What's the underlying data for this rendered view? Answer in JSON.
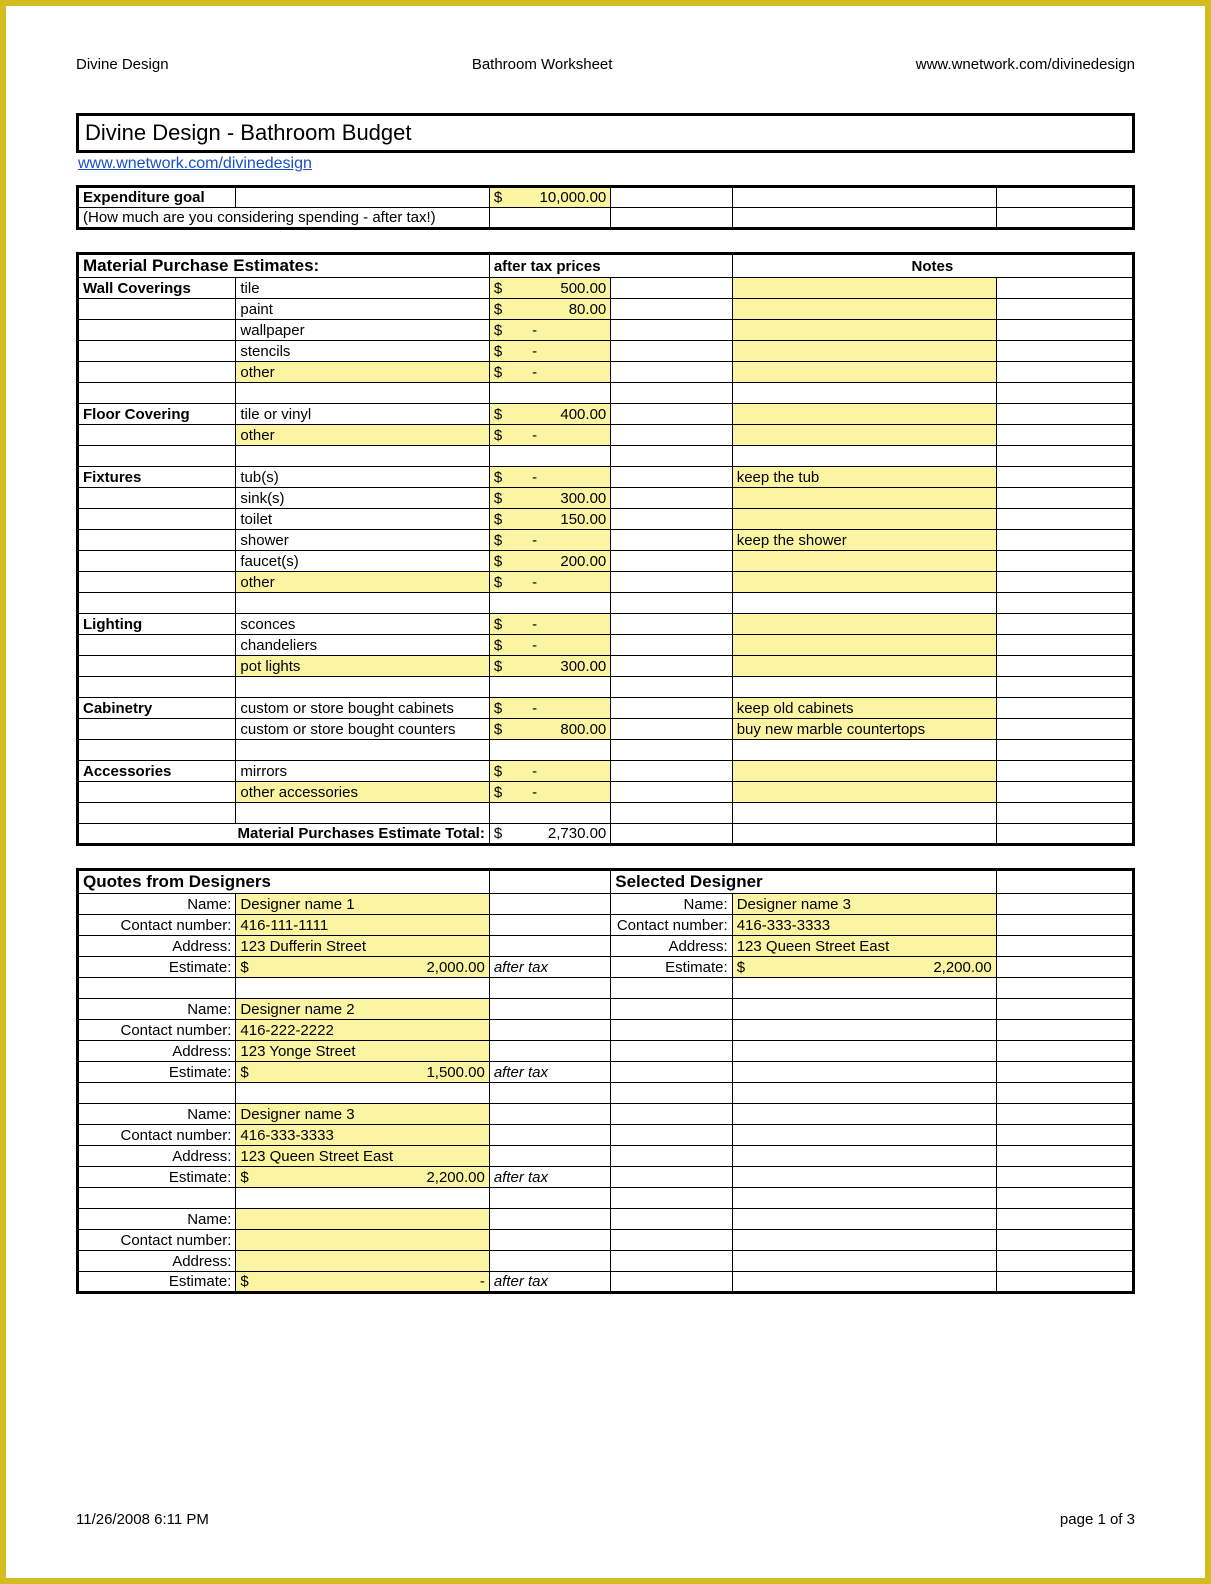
{
  "header": {
    "left": "Divine Design",
    "center": "Bathroom Worksheet",
    "right": "www.wnetwork.com/divinedesign"
  },
  "title": "Divine Design - Bathroom Budget",
  "link": "www.wnetwork.com/divinedesign",
  "goal": {
    "label": "Expenditure goal",
    "amount_sym": "$",
    "amount": "10,000.00",
    "note": "(How much are you considering spending - after tax!)"
  },
  "materials": {
    "heading": "Material Purchase Estimates:",
    "price_head": "after tax prices",
    "notes_head": "Notes",
    "total_label": "Material Purchases Estimate Total:",
    "total_sym": "$",
    "total_val": "2,730.00",
    "groups": [
      {
        "category": "Wall Coverings",
        "rows": [
          {
            "item": "tile",
            "sym": "$",
            "val": "500.00",
            "note": "",
            "yellow": true
          },
          {
            "item": "paint",
            "sym": "$",
            "val": "80.00",
            "note": "",
            "yellow": true
          },
          {
            "item": "wallpaper",
            "sym": "$",
            "val": "-",
            "note": "",
            "yellow": true
          },
          {
            "item": "stencils",
            "sym": "$",
            "val": "-",
            "note": "",
            "yellow": true
          },
          {
            "item": "other",
            "sym": "$",
            "val": "-",
            "note": "",
            "yellow": true,
            "item_yellow": true
          }
        ]
      },
      {
        "category": "Floor Covering",
        "rows": [
          {
            "item": "tile or vinyl",
            "sym": "$",
            "val": "400.00",
            "note": "",
            "yellow": true
          },
          {
            "item": "other",
            "sym": "$",
            "val": "-",
            "note": "",
            "yellow": true,
            "item_yellow": true
          }
        ]
      },
      {
        "category": "Fixtures",
        "rows": [
          {
            "item": "tub(s)",
            "sym": "$",
            "val": "-",
            "note": "keep the tub",
            "yellow": true
          },
          {
            "item": "sink(s)",
            "sym": "$",
            "val": "300.00",
            "note": "",
            "yellow": true
          },
          {
            "item": "toilet",
            "sym": "$",
            "val": "150.00",
            "note": "",
            "yellow": true
          },
          {
            "item": "shower",
            "sym": "$",
            "val": "-",
            "note": "keep the shower",
            "yellow": true
          },
          {
            "item": "faucet(s)",
            "sym": "$",
            "val": "200.00",
            "note": "",
            "yellow": true
          },
          {
            "item": "other",
            "sym": "$",
            "val": "-",
            "note": "",
            "yellow": true,
            "item_yellow": true
          }
        ]
      },
      {
        "category": "Lighting",
        "rows": [
          {
            "item": "sconces",
            "sym": "$",
            "val": "-",
            "note": "",
            "yellow": true
          },
          {
            "item": "chandeliers",
            "sym": "$",
            "val": "-",
            "note": "",
            "yellow": true
          },
          {
            "item": "pot lights",
            "sym": "$",
            "val": "300.00",
            "note": "",
            "yellow": true,
            "item_yellow": true
          }
        ]
      },
      {
        "category": "Cabinetry",
        "rows": [
          {
            "item": "custom or store bought cabinets",
            "sym": "$",
            "val": "-",
            "note": "keep old cabinets",
            "yellow": true
          },
          {
            "item": "custom or store bought counters",
            "sym": "$",
            "val": "800.00",
            "note": "buy new marble countertops",
            "yellow": true
          }
        ]
      },
      {
        "category": "Accessories",
        "rows": [
          {
            "item": "mirrors",
            "sym": "$",
            "val": "-",
            "note": "",
            "yellow": true
          },
          {
            "item": "other accessories",
            "sym": "$",
            "val": "-",
            "note": "",
            "yellow": true,
            "item_yellow": true
          }
        ]
      }
    ]
  },
  "quotes": {
    "head_left": "Quotes from Designers",
    "head_right": "Selected Designer",
    "labels": {
      "name": "Name:",
      "contact": "Contact number:",
      "address": "Address:",
      "estimate": "Estimate:",
      "after_tax": "after tax"
    },
    "designers": [
      {
        "name": "Designer name 1",
        "contact": "416-111-1111",
        "address": "123 Dufferin Street",
        "est_sym": "$",
        "est_val": "2,000.00"
      },
      {
        "name": "Designer name 2",
        "contact": "416-222-2222",
        "address": "123 Yonge Street",
        "est_sym": "$",
        "est_val": "1,500.00"
      },
      {
        "name": "Designer name 3",
        "contact": "416-333-3333",
        "address": "123 Queen Street East",
        "est_sym": "$",
        "est_val": "2,200.00"
      },
      {
        "name": "",
        "contact": "",
        "address": "",
        "est_sym": "$",
        "est_val": "-"
      }
    ],
    "selected": {
      "name": "Designer name 3",
      "contact": "416-333-3333",
      "address": "123 Queen Street East",
      "est_sym": "$",
      "est_val": "2,200.00"
    }
  },
  "footer": {
    "left": "11/26/2008 6:11 PM",
    "right": "page 1 of 3"
  },
  "colors": {
    "yellow": "#fbf5a3",
    "frame": "#d4bc1f",
    "link": "#1a4fc9"
  }
}
